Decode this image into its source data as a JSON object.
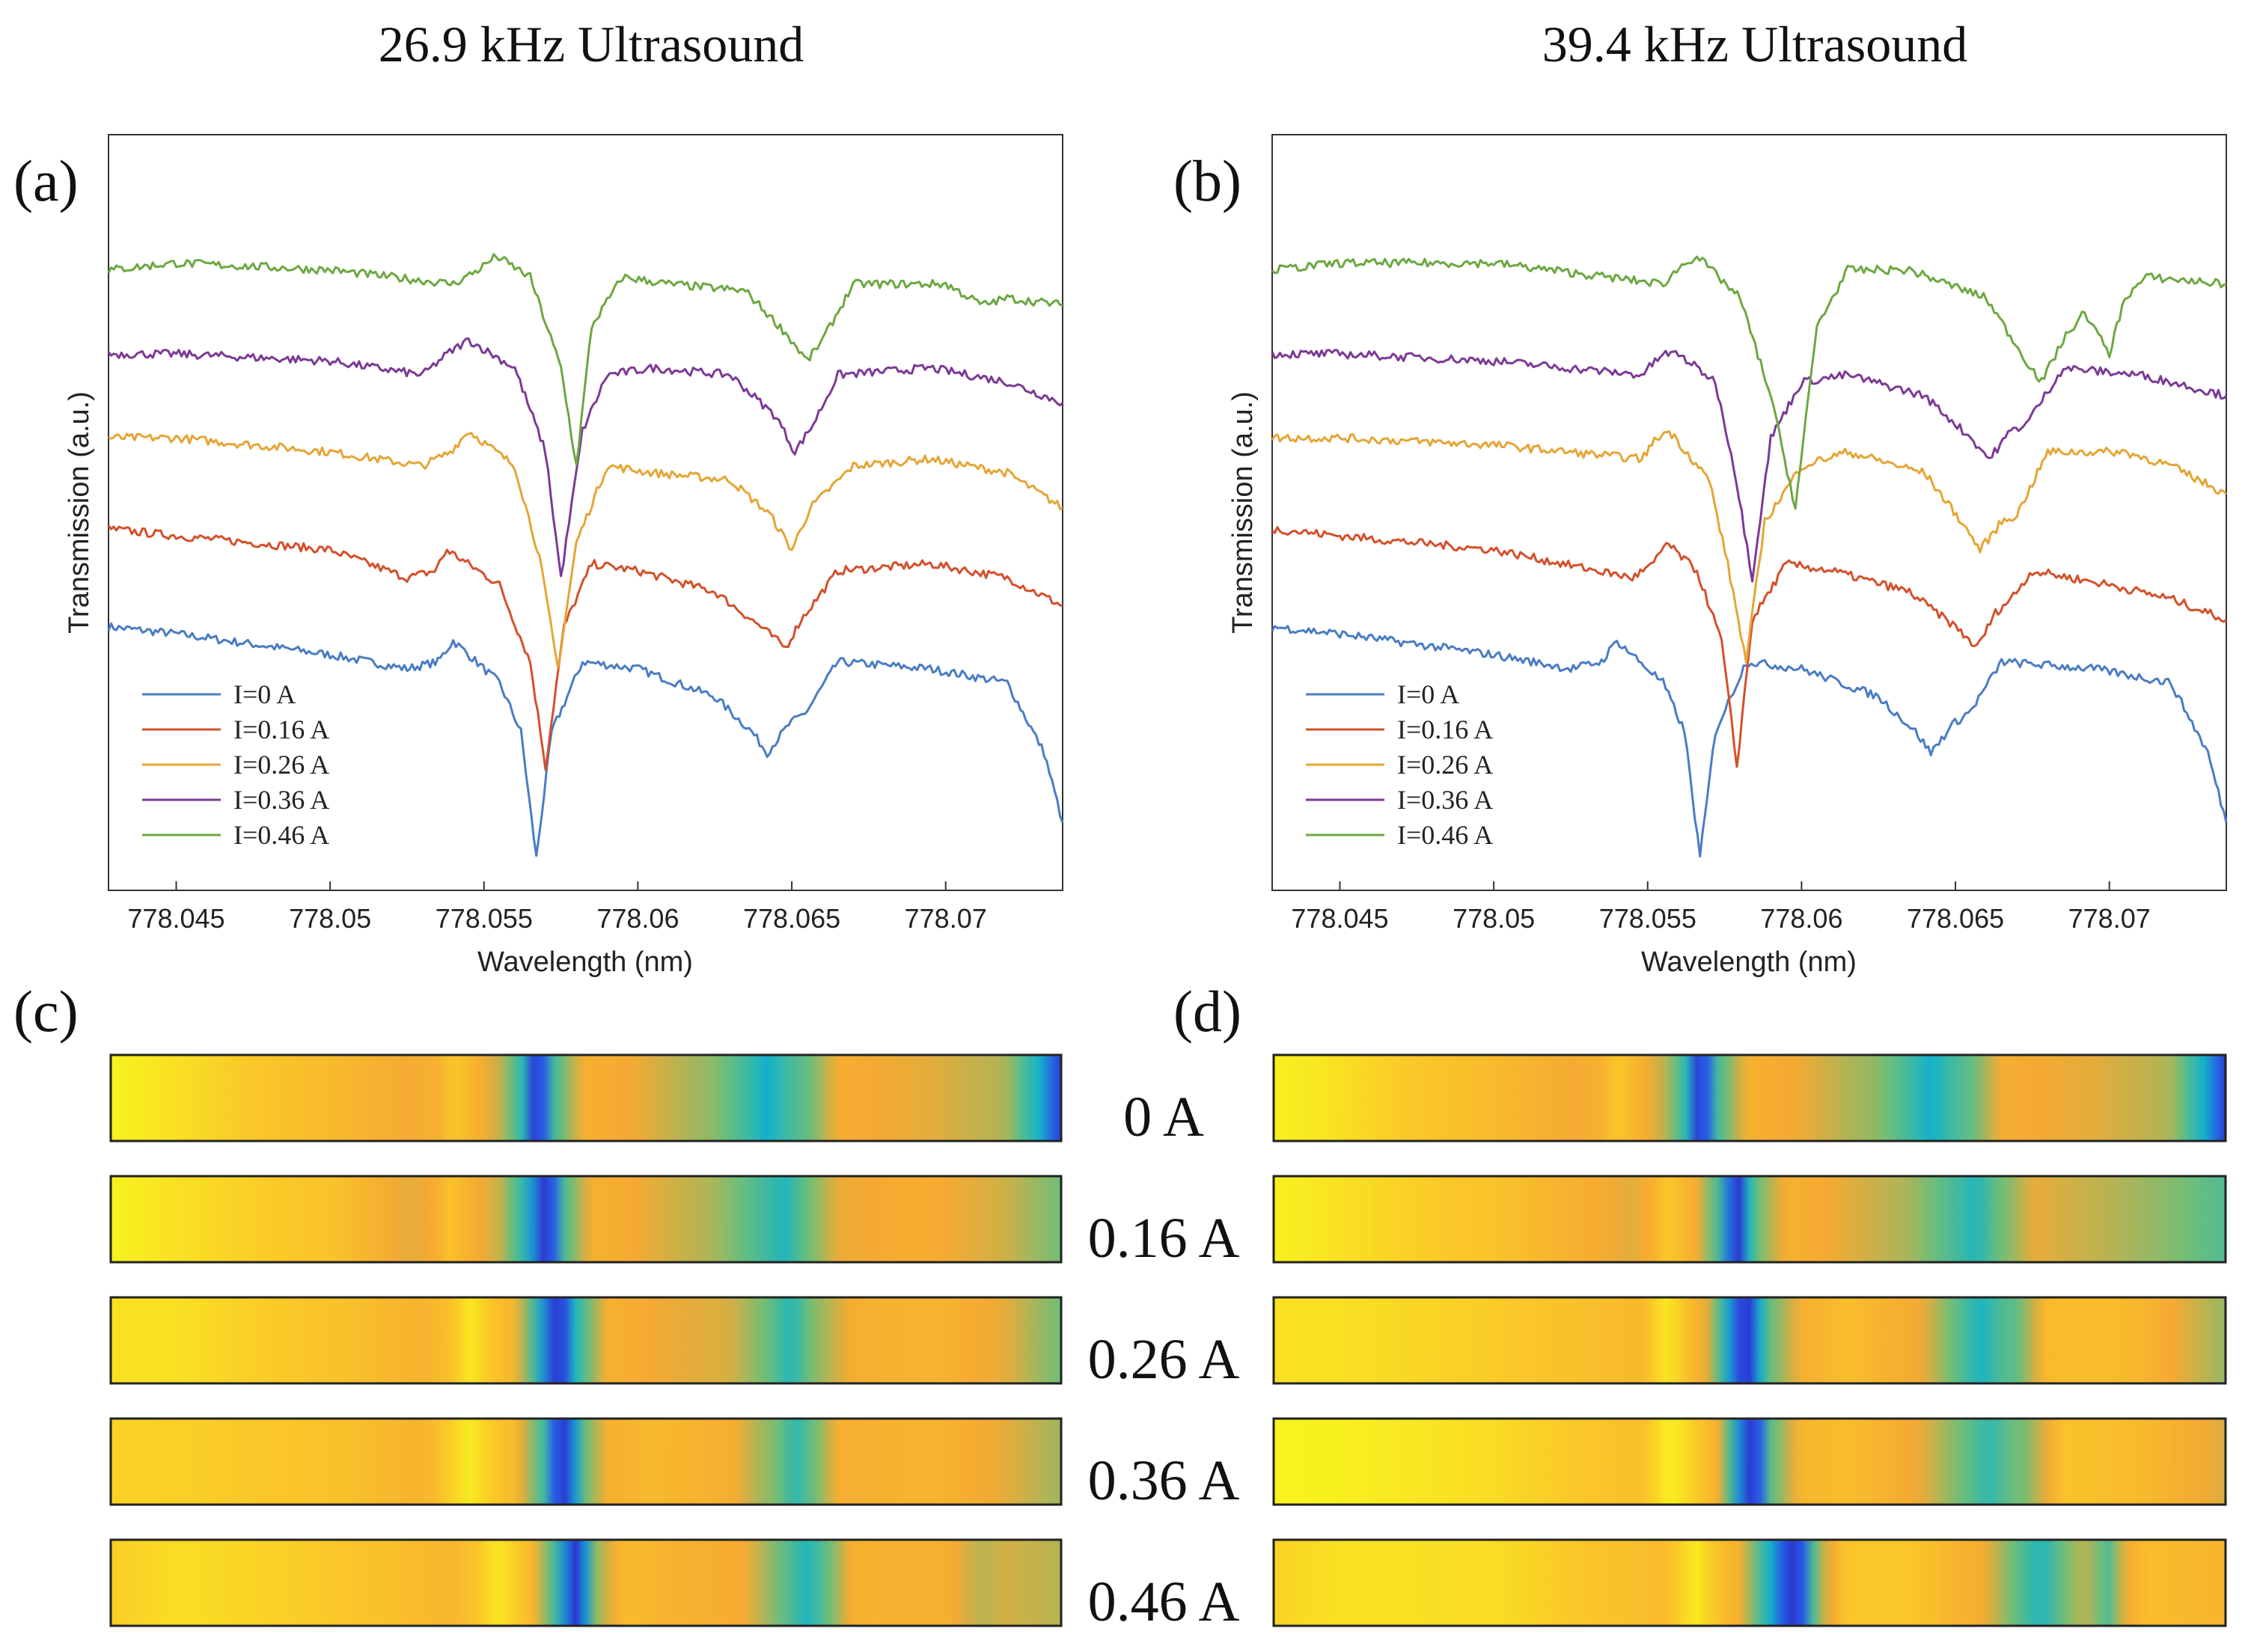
{
  "figure": {
    "column_titles": [
      "26.9 kHz Ultrasound",
      "39.4 kHz Ultrasound"
    ],
    "panel_labels": [
      "(a)",
      "(b)",
      "(c)",
      "(d)"
    ],
    "bar_labels": [
      "0 A",
      "0.16 A",
      "0.26 A",
      "0.36 A",
      "0.46 A"
    ]
  },
  "colors": {
    "I=0 A": "#4a7cc4",
    "I=0.16 A": "#d4502a",
    "I=0.26 A": "#e5a536",
    "I=0.36 A": "#7c3a96",
    "I=0.46 A": "#6ca840"
  },
  "chart_data": [
    {
      "type": "line",
      "panel": "(a)",
      "title": "26.9 kHz Ultrasound",
      "xlabel": "Wavelength (nm)",
      "ylabel": "Transmission (a.u.)",
      "xlim": [
        778.0428,
        778.0738
      ],
      "xticks": [
        "778.045",
        "778.05",
        "778.055",
        "778.06",
        "778.065",
        "778.07"
      ],
      "xtick_values": [
        778.045,
        778.05,
        778.055,
        778.06,
        778.065,
        778.07
      ],
      "ylim": [
        0,
        1
      ],
      "legend_location": "bottom-left",
      "series": [
        {
          "name": "I=0 A",
          "x": [
            778.0428,
            778.045,
            778.05,
            778.0525,
            778.0535,
            778.054,
            778.0555,
            778.0562,
            778.0567,
            778.0572,
            778.0582,
            778.06,
            778.0625,
            778.0637,
            778.0642,
            778.0649,
            778.0655,
            778.0665,
            778.0695,
            778.072,
            778.0732,
            778.0738
          ],
          "y": [
            0.35,
            0.34,
            0.31,
            0.29,
            0.3,
            0.33,
            0.27,
            0.2,
            0.02,
            0.2,
            0.3,
            0.29,
            0.25,
            0.2,
            0.17,
            0.21,
            0.23,
            0.3,
            0.29,
            0.27,
            0.17,
            0.07
          ]
        },
        {
          "name": "I=0.16 A",
          "x": [
            778.0428,
            778.045,
            778.05,
            778.0525,
            778.0534,
            778.0538,
            778.0555,
            778.0565,
            778.057,
            778.0576,
            778.0585,
            778.06,
            778.0625,
            778.064,
            778.0648,
            778.0653,
            778.0665,
            778.0695,
            778.072,
            778.0738
          ],
          "y": [
            0.49,
            0.48,
            0.46,
            0.42,
            0.43,
            0.46,
            0.41,
            0.3,
            0.15,
            0.35,
            0.44,
            0.43,
            0.4,
            0.35,
            0.32,
            0.36,
            0.43,
            0.44,
            0.42,
            0.38
          ]
        },
        {
          "name": "I=0.26 A",
          "x": [
            778.0428,
            778.045,
            778.05,
            778.053,
            778.0539,
            778.0545,
            778.056,
            778.0568,
            778.0574,
            778.058,
            778.059,
            778.0605,
            778.063,
            778.0643,
            778.065,
            778.0656,
            778.067,
            778.0695,
            778.072,
            778.0738
          ],
          "y": [
            0.62,
            0.62,
            0.6,
            0.58,
            0.6,
            0.63,
            0.58,
            0.45,
            0.29,
            0.47,
            0.58,
            0.57,
            0.56,
            0.51,
            0.46,
            0.52,
            0.58,
            0.59,
            0.57,
            0.52
          ]
        },
        {
          "name": "I=0.36 A",
          "x": [
            778.0428,
            778.045,
            778.05,
            778.053,
            778.0538,
            778.0545,
            778.056,
            778.057,
            778.0575,
            778.0582,
            778.059,
            778.0605,
            778.063,
            778.0645,
            778.0651,
            778.0657,
            778.0665,
            778.0695,
            778.072,
            778.0738
          ],
          "y": [
            0.74,
            0.74,
            0.73,
            0.71,
            0.74,
            0.76,
            0.72,
            0.6,
            0.42,
            0.63,
            0.71,
            0.72,
            0.71,
            0.65,
            0.6,
            0.64,
            0.71,
            0.72,
            0.7,
            0.67
          ]
        },
        {
          "name": "I=0.46 A",
          "x": [
            778.0428,
            778.045,
            778.05,
            778.054,
            778.0548,
            778.0554,
            778.0565,
            778.0575,
            778.058,
            778.0585,
            778.0595,
            778.061,
            778.0635,
            778.0648,
            778.0655,
            778.066,
            778.067,
            778.07,
            778.0712,
            778.072,
            778.0738
          ],
          "y": [
            0.86,
            0.87,
            0.86,
            0.84,
            0.86,
            0.88,
            0.85,
            0.72,
            0.58,
            0.78,
            0.85,
            0.84,
            0.83,
            0.77,
            0.73,
            0.76,
            0.84,
            0.84,
            0.81,
            0.82,
            0.81
          ]
        }
      ]
    },
    {
      "type": "line",
      "panel": "(b)",
      "title": "39.4 kHz Ultrasound",
      "xlabel": "Wavelength (nm)",
      "ylabel": "Transmission (a.u.)",
      "xlim": [
        778.0428,
        778.0738
      ],
      "xticks": [
        "778.045",
        "778.05",
        "778.055",
        "778.06",
        "778.065",
        "778.07"
      ],
      "xtick_values": [
        778.045,
        778.05,
        778.055,
        778.06,
        778.065,
        778.07
      ],
      "ylim": [
        0,
        1
      ],
      "legend_location": "bottom-left",
      "series": [
        {
          "name": "I=0 A",
          "x": [
            778.0428,
            778.045,
            778.05,
            778.0525,
            778.0535,
            778.054,
            778.0555,
            778.0562,
            778.0567,
            778.0572,
            778.0582,
            778.06,
            778.0625,
            778.0637,
            778.0642,
            778.0649,
            778.0655,
            778.0665,
            778.0695,
            778.072,
            778.0732,
            778.0738
          ],
          "y": [
            0.35,
            0.34,
            0.31,
            0.29,
            0.3,
            0.33,
            0.27,
            0.2,
            0.02,
            0.2,
            0.3,
            0.29,
            0.25,
            0.2,
            0.17,
            0.21,
            0.23,
            0.3,
            0.29,
            0.27,
            0.17,
            0.07
          ]
        },
        {
          "name": "I=0.16 A",
          "x": [
            778.0428,
            778.045,
            778.05,
            778.0545,
            778.0552,
            778.0556,
            778.0566,
            778.0574,
            778.0579,
            778.0584,
            778.0595,
            778.061,
            778.0635,
            778.065,
            778.0657,
            778.0663,
            778.0668,
            778.0675,
            778.07,
            778.072,
            778.0738
          ],
          "y": [
            0.49,
            0.48,
            0.46,
            0.42,
            0.44,
            0.47,
            0.43,
            0.33,
            0.15,
            0.36,
            0.44,
            0.43,
            0.4,
            0.35,
            0.32,
            0.37,
            0.39,
            0.43,
            0.41,
            0.39,
            0.36
          ]
        },
        {
          "name": "I=0.26 A",
          "x": [
            778.0428,
            778.045,
            778.05,
            778.0548,
            778.0553,
            778.0557,
            778.057,
            778.0576,
            778.0582,
            778.0588,
            778.06,
            778.0615,
            778.064,
            778.0652,
            778.0658,
            778.0665,
            778.067,
            778.068,
            778.0705,
            778.072,
            778.0738
          ],
          "y": [
            0.62,
            0.62,
            0.61,
            0.59,
            0.62,
            0.63,
            0.56,
            0.44,
            0.3,
            0.5,
            0.58,
            0.6,
            0.57,
            0.5,
            0.46,
            0.5,
            0.51,
            0.6,
            0.6,
            0.58,
            0.54
          ]
        },
        {
          "name": "I=0.36 A",
          "x": [
            778.0428,
            778.045,
            778.05,
            778.0548,
            778.0555,
            778.056,
            778.0572,
            778.0578,
            778.0584,
            778.059,
            778.06,
            778.0615,
            778.064,
            778.0655,
            778.0661,
            778.0668,
            778.0673,
            778.0685,
            778.071,
            778.072,
            778.0738
          ],
          "y": [
            0.74,
            0.74,
            0.73,
            0.71,
            0.74,
            0.74,
            0.7,
            0.58,
            0.42,
            0.62,
            0.7,
            0.71,
            0.68,
            0.62,
            0.59,
            0.63,
            0.64,
            0.72,
            0.71,
            0.7,
            0.68
          ]
        },
        {
          "name": "I=0.46 A",
          "x": [
            778.0428,
            778.045,
            778.05,
            778.0555,
            778.0562,
            778.0566,
            778.058,
            778.059,
            778.0598,
            778.0605,
            778.0615,
            778.0635,
            778.066,
            778.0673,
            778.0678,
            778.0685,
            778.0692,
            778.07,
            778.0705,
            778.0712,
            778.0738
          ],
          "y": [
            0.86,
            0.87,
            0.87,
            0.84,
            0.87,
            0.88,
            0.82,
            0.68,
            0.52,
            0.78,
            0.86,
            0.86,
            0.82,
            0.73,
            0.7,
            0.76,
            0.8,
            0.74,
            0.82,
            0.85,
            0.84
          ]
        }
      ]
    },
    {
      "type": "heatmap",
      "panel": "(c)",
      "rows": [
        "0 A",
        "0.16 A",
        "0.26 A",
        "0.36 A",
        "0.46 A"
      ],
      "colormap": "parula"
    },
    {
      "type": "heatmap",
      "panel": "(d)",
      "rows": [
        "0 A",
        "0.16 A",
        "0.26 A",
        "0.36 A",
        "0.46 A"
      ],
      "colormap": "parula"
    }
  ]
}
